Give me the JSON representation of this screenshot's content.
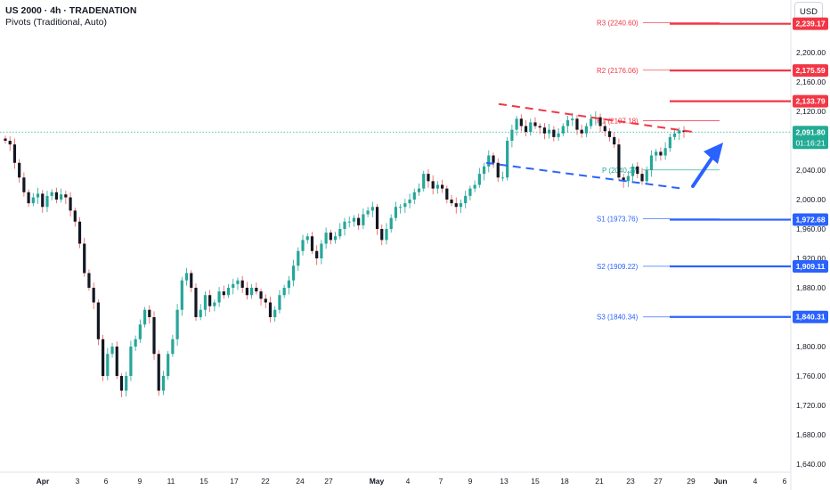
{
  "header": {
    "symbol": "US 2000 · 4h · TRADENATION",
    "indicator": "Pivots (Traditional, Auto)",
    "currency": "USD"
  },
  "colors": {
    "bull": "#26a69a",
    "bear": "#ef5350",
    "dark": "#131722",
    "red": "#f23645",
    "blue": "#2962ff",
    "green": "#22ab94"
  },
  "chart_data": {
    "type": "line",
    "title": "",
    "xlabel": "",
    "ylabel": "",
    "ylim": [
      1625,
      2265
    ],
    "y_ticks": [
      "2,200.00",
      "2,160.00",
      "2,120.00",
      "2,080.00",
      "2,040.00",
      "2,000.00",
      "1,960.00",
      "1,920.00",
      "1,880.00",
      "1,840.00",
      "1,800.00",
      "1,760.00",
      "1,720.00",
      "1,680.00",
      "1,640.00"
    ],
    "x_ticks": [
      "Apr",
      "3",
      "6",
      "9",
      "11",
      "15",
      "17",
      "22",
      "24",
      "27",
      "May",
      "4",
      "7",
      "9",
      "13",
      "15",
      "18",
      "21",
      "23",
      "27",
      "29",
      "Jun",
      "4",
      "6"
    ],
    "grid": false,
    "series": [
      {
        "values": [
          2080,
          2075,
          2050,
          2030,
          2010,
          1995,
          2003,
          2008,
          1990,
          2005,
          2010,
          2000,
          2007,
          2003,
          1985,
          1970,
          1940,
          1900,
          1880,
          1860,
          1810,
          1760,
          1790,
          1800,
          1760,
          1740,
          1760,
          1800,
          1810,
          1830,
          1850,
          1840,
          1790,
          1740,
          1760,
          1790,
          1810,
          1850,
          1890,
          1900,
          1880,
          1840,
          1850,
          1870,
          1855,
          1860,
          1875,
          1870,
          1880,
          1885,
          1890,
          1880,
          1870,
          1880,
          1875,
          1865,
          1860,
          1840,
          1850,
          1870,
          1880,
          1890,
          1910,
          1930,
          1945,
          1950,
          1930,
          1920,
          1940,
          1955,
          1945,
          1950,
          1960,
          1970,
          1970,
          1975,
          1965,
          1980,
          1985,
          1990,
          1960,
          1945,
          1960,
          1975,
          1990,
          1990,
          1995,
          2000,
          2010,
          2015,
          2035,
          2025,
          2015,
          2020,
          2015,
          2000,
          1995,
          1990,
          1995,
          2005,
          2015,
          2020,
          2035,
          2045,
          2060,
          2050,
          2030,
          2030,
          2080,
          2095,
          2110,
          2100,
          2092,
          2105,
          2100,
          2098,
          2090,
          2095,
          2085,
          2090,
          2100,
          2108,
          2110,
          2095,
          2090,
          2100,
          2110,
          2112,
          2100,
          2093,
          2085,
          2075,
          2030,
          2025,
          2032,
          2045,
          2035,
          2025,
          2040,
          2060,
          2065,
          2060,
          2070,
          2085,
          2090,
          2094,
          2092
        ]
      }
    ],
    "last_price": "2,091.80",
    "countdown": "01:16:21",
    "pivot_labels": [
      "R3 (2240.60)",
      "R2 (2176.06)",
      "R1 (2107.18)",
      "P (2040.27)",
      "S1 (1973.76)",
      "S2 (1909.22)",
      "S3 (1840.34)"
    ],
    "pivot_values": [
      2240.6,
      2176.06,
      2107.18,
      2040.27,
      1973.76,
      1909.22,
      1840.34
    ],
    "price_badges": [
      {
        "value": 2239.17,
        "text": "2,239.17",
        "color": "red"
      },
      {
        "value": 2175.59,
        "text": "2,175.59",
        "color": "red"
      },
      {
        "value": 2133.79,
        "text": "2,133.79",
        "color": "red"
      },
      {
        "value": 1972.68,
        "text": "1,972.68",
        "color": "blue"
      },
      {
        "value": 1909.11,
        "text": "1,909.11",
        "color": "blue"
      },
      {
        "value": 1840.31,
        "text": "1,840.31",
        "color": "blue"
      }
    ],
    "channel": {
      "upper": [
        2130,
        2092
      ],
      "lower": [
        2050,
        2015
      ]
    }
  }
}
